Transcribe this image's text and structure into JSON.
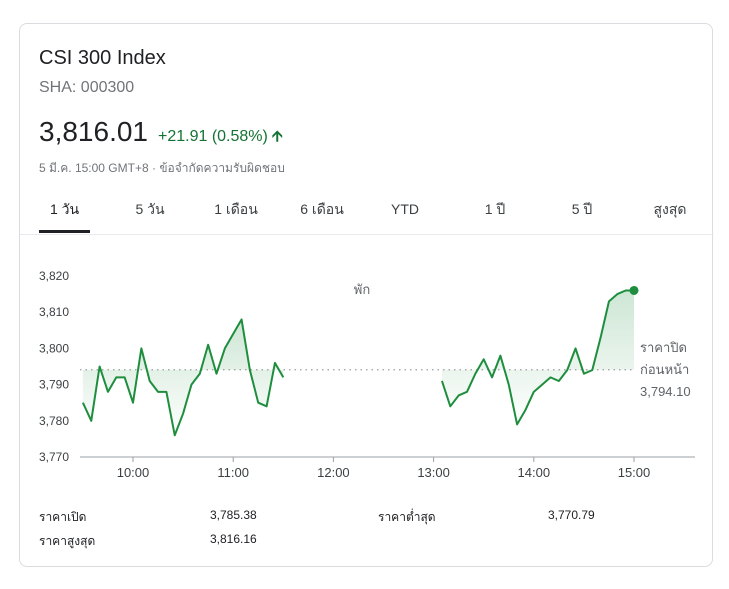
{
  "header": {
    "title": "CSI 300 Index",
    "ticker": "SHA: 000300",
    "price": "3,816.01",
    "change": "+21.91 (0.58%)",
    "change_color": "#137333",
    "meta": "5 มี.ค. 15:00 GMT+8 · ข้อจำกัดความรับผิดชอบ"
  },
  "tabs": [
    {
      "label": "1 วัน",
      "active": true
    },
    {
      "label": "5 วัน"
    },
    {
      "label": "1 เดือน"
    },
    {
      "label": "6 เดือน"
    },
    {
      "label": "YTD"
    },
    {
      "label": "1 ปี"
    },
    {
      "label": "5 ปี"
    },
    {
      "label": "สูงสุด"
    }
  ],
  "chart_data": {
    "type": "line",
    "y_ticks": [
      "3,820",
      "3,810",
      "3,800",
      "3,790",
      "3,780",
      "3,770"
    ],
    "ylim": [
      3770,
      3825
    ],
    "x_ticks": [
      "10:00",
      "11:00",
      "12:00",
      "13:00",
      "14:00",
      "15:00"
    ],
    "x_tick_values": [
      "10:00",
      "11:00",
      "12:00",
      "13:00",
      "14:00",
      "15:00"
    ],
    "line_color": "#1e8e3e",
    "break_label": "พัก",
    "previous_close": {
      "label_line1": "ราคาปิด",
      "label_line2": "ก่อนหน้า",
      "value": 3794.1,
      "value_text": "3,794.10"
    },
    "series": [
      {
        "values_morning": [
          [
            "09:30",
            3785
          ],
          [
            "09:35",
            3780
          ],
          [
            "09:40",
            3795
          ],
          [
            "09:45",
            3788
          ],
          [
            "09:50",
            3792
          ],
          [
            "09:55",
            3792
          ],
          [
            "10:00",
            3785
          ],
          [
            "10:05",
            3800
          ],
          [
            "10:10",
            3791
          ],
          [
            "10:15",
            3788
          ],
          [
            "10:20",
            3788
          ],
          [
            "10:25",
            3776
          ],
          [
            "10:30",
            3782
          ],
          [
            "10:35",
            3790
          ],
          [
            "10:40",
            3793
          ],
          [
            "10:45",
            3801
          ],
          [
            "10:50",
            3793
          ],
          [
            "10:55",
            3800
          ],
          [
            "11:00",
            3804
          ],
          [
            "11:05",
            3808
          ],
          [
            "11:10",
            3794
          ],
          [
            "11:15",
            3785
          ],
          [
            "11:20",
            3784
          ],
          [
            "11:25",
            3796
          ],
          [
            "11:30",
            3792
          ]
        ],
        "values_afternoon": [
          [
            "13:05",
            3791
          ],
          [
            "13:10",
            3784
          ],
          [
            "13:15",
            3787
          ],
          [
            "13:20",
            3788
          ],
          [
            "13:25",
            3793
          ],
          [
            "13:30",
            3797
          ],
          [
            "13:35",
            3792
          ],
          [
            "13:40",
            3798
          ],
          [
            "13:45",
            3790
          ],
          [
            "13:50",
            3779
          ],
          [
            "13:55",
            3783
          ],
          [
            "14:00",
            3788
          ],
          [
            "14:05",
            3790
          ],
          [
            "14:10",
            3792
          ],
          [
            "14:15",
            3791
          ],
          [
            "14:20",
            3794
          ],
          [
            "14:25",
            3800
          ],
          [
            "14:30",
            3793
          ],
          [
            "14:35",
            3794
          ],
          [
            "14:40",
            3803
          ],
          [
            "14:45",
            3813
          ],
          [
            "14:50",
            3815
          ],
          [
            "14:55",
            3816
          ],
          [
            "15:00",
            3816
          ]
        ]
      }
    ]
  },
  "stats": [
    {
      "label": "ราคาเปิด",
      "value": "3,785.38"
    },
    {
      "label": "ราคาต่ำสุด",
      "value": "3,770.79"
    },
    {
      "label": "ราคาสูงสุด",
      "value": "3,816.16"
    }
  ]
}
